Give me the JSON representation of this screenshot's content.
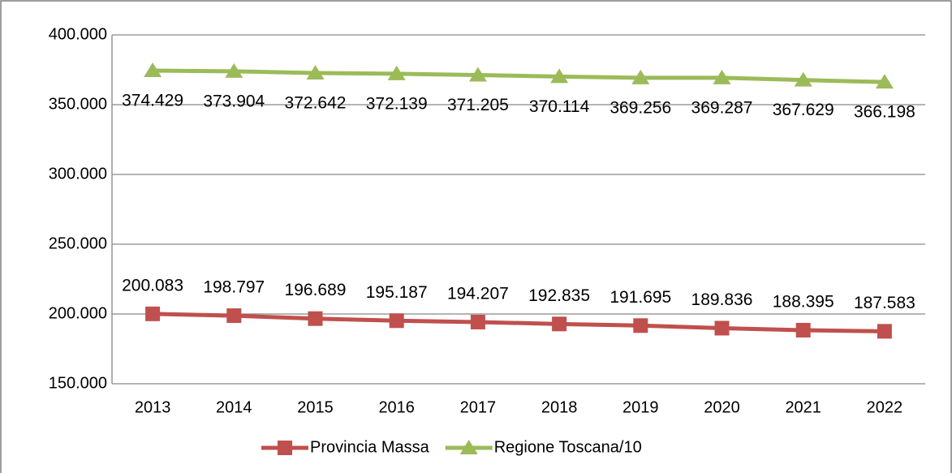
{
  "chart_data": {
    "type": "line",
    "categories": [
      "2013",
      "2014",
      "2015",
      "2016",
      "2017",
      "2018",
      "2019",
      "2020",
      "2021",
      "2022"
    ],
    "series": [
      {
        "name": "Provincia Massa",
        "color": "#c0504d",
        "marker": "square",
        "values": [
          200083,
          198797,
          196689,
          195187,
          194207,
          192835,
          191695,
          189836,
          188395,
          187583
        ],
        "value_labels": [
          "200.083",
          "198.797",
          "196.689",
          "195.187",
          "194.207",
          "192.835",
          "191.695",
          "189.836",
          "188.395",
          "187.583"
        ]
      },
      {
        "name": "Regione Toscana/10",
        "color": "#9bbb59",
        "marker": "triangle",
        "values": [
          374429,
          373904,
          372642,
          372139,
          371205,
          370114,
          369256,
          369287,
          367629,
          366198
        ],
        "value_labels": [
          "374.429",
          "373.904",
          "372.642",
          "372.139",
          "371.205",
          "370.114",
          "369.256",
          "369.287",
          "367.629",
          "366.198"
        ]
      }
    ],
    "ylim": [
      150000,
      400000
    ],
    "yticks": [
      {
        "value": 150000,
        "label": "150.000"
      },
      {
        "value": 200000,
        "label": "200.000"
      },
      {
        "value": 250000,
        "label": "250.000"
      },
      {
        "value": 300000,
        "label": "300.000"
      },
      {
        "value": 350000,
        "label": "350.000"
      },
      {
        "value": 400000,
        "label": "400.000"
      }
    ],
    "grid": true,
    "legend": "bottom"
  }
}
